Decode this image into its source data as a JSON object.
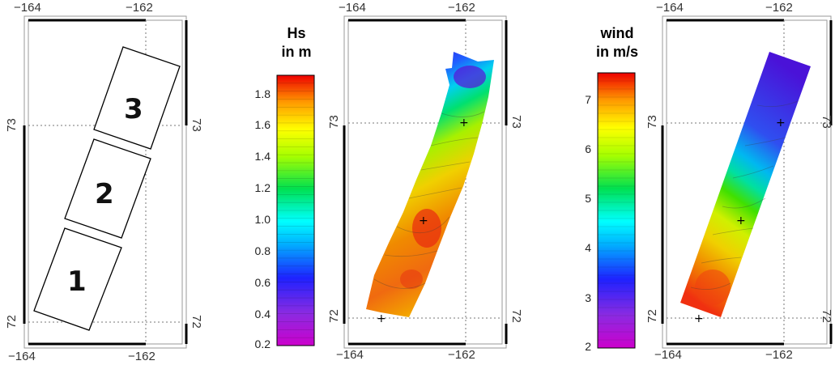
{
  "maps": [
    {
      "top_left": "−164",
      "top_right": "−162",
      "bottom_left": "−164",
      "bottom_right": "−162",
      "left_upper": "73",
      "left_lower": "72",
      "right_upper": "73",
      "right_lower": "72",
      "segments": [
        "3",
        "2",
        "1"
      ]
    },
    {
      "top_left": "−164",
      "top_right": "−162",
      "bottom_left": "−164",
      "bottom_right": "−162",
      "left_upper": "73",
      "left_lower": "72",
      "right_upper": "73",
      "right_lower": "72"
    },
    {
      "top_left": "−164",
      "top_right": "−162",
      "bottom_left": "−164",
      "bottom_right": "−162",
      "left_upper": "73",
      "left_lower": "72",
      "right_upper": "73",
      "right_lower": "72"
    }
  ],
  "hs_colorbar": {
    "title_line1": "Hs",
    "title_line2": "in m",
    "ticks": [
      "1.8",
      "1.6",
      "1.4",
      "1.2",
      "1.0",
      "0.8",
      "0.6",
      "0.4",
      "0.2"
    ]
  },
  "wind_colorbar": {
    "title_line1": "wind",
    "title_line2": "in m/s",
    "ticks": [
      "7",
      "6",
      "5",
      "4",
      "3",
      "2"
    ]
  }
}
